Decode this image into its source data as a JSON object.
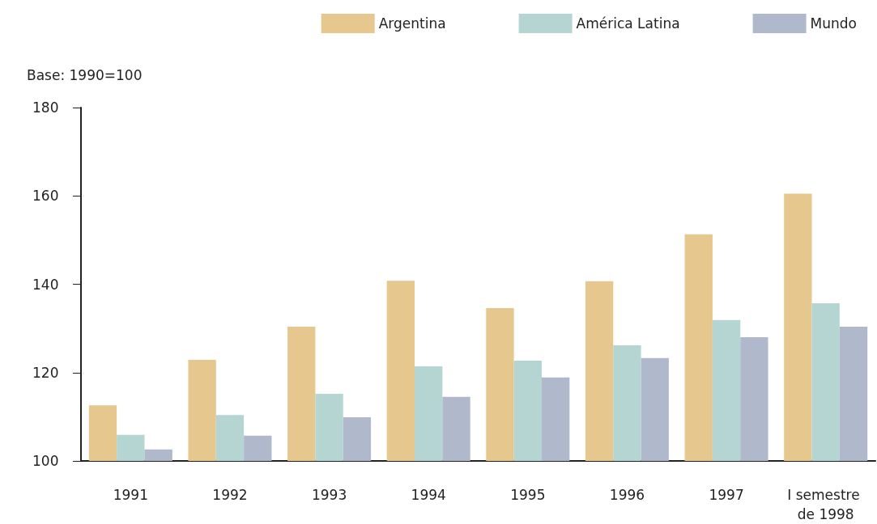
{
  "chart_data": {
    "type": "bar",
    "ylabel": "Base: 1990=100",
    "categories": [
      "1991",
      "1992",
      "1993",
      "1994",
      "1995",
      "1996",
      "1997",
      "I semestre de 1998"
    ],
    "series": [
      {
        "name": "Argentina",
        "color": "#e6c78e",
        "values": [
          112.6,
          122.9,
          130.4,
          140.8,
          134.6,
          140.7,
          151.3,
          160.5
        ]
      },
      {
        "name": "América Latina",
        "color": "#b5d5d2",
        "values": [
          105.9,
          110.4,
          115.2,
          121.4,
          122.7,
          126.2,
          131.9,
          135.7
        ]
      },
      {
        "name": "Mundo",
        "color": "#b0b9cc",
        "values": [
          102.6,
          105.7,
          109.9,
          114.5,
          118.9,
          123.3,
          128.0,
          130.4
        ]
      }
    ],
    "ylim": [
      100,
      180
    ],
    "yticks": [
      100,
      120,
      140,
      160,
      180
    ],
    "grid": false,
    "legend": "top right"
  }
}
